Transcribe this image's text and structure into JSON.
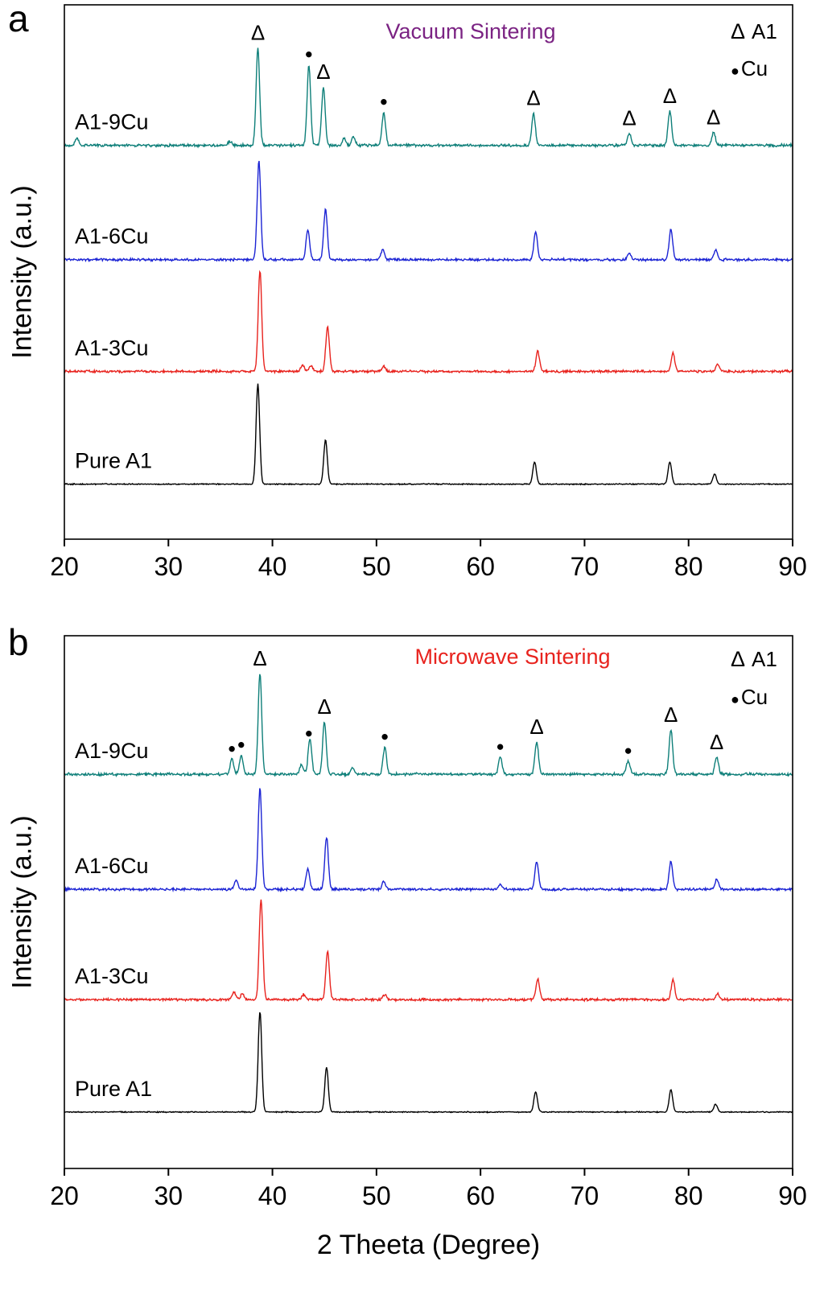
{
  "figure": {
    "xlabel": "2 Theeta (Degree)",
    "background": "#ffffff"
  },
  "chart_data": [
    {
      "type": "line",
      "panel_letter": "a",
      "title": "Vacuum Sintering",
      "title_color": "#7b2383",
      "xlabel": "2 Theeta (Degree)",
      "ylabel": "Intensity (a.u.)",
      "xlim": [
        20,
        90
      ],
      "x_ticks": [
        20,
        30,
        40,
        50,
        60,
        70,
        80,
        90
      ],
      "legend": [
        {
          "symbol": "Δ",
          "label": "A1"
        },
        {
          "symbol": "●",
          "label": "Cu"
        }
      ],
      "peak_markers": [
        {
          "symbol": "Δ",
          "x": 38.6
        },
        {
          "symbol": "●",
          "x": 43.5
        },
        {
          "symbol": "Δ",
          "x": 44.9
        },
        {
          "symbol": "●",
          "x": 50.7
        },
        {
          "symbol": "Δ",
          "x": 65.1
        },
        {
          "symbol": "Δ",
          "x": 74.3
        },
        {
          "symbol": "Δ",
          "x": 78.2
        },
        {
          "symbol": "Δ",
          "x": 82.4
        }
      ],
      "series": [
        {
          "name": "A1-9Cu",
          "color": "#0e7f79",
          "noise": 2.0,
          "peaks": [
            {
              "x": 21.2,
              "h": 0.07
            },
            {
              "x": 35.9,
              "h": 0.04
            },
            {
              "x": 38.6,
              "h": 0.97
            },
            {
              "x": 43.5,
              "h": 0.8
            },
            {
              "x": 44.9,
              "h": 0.58
            },
            {
              "x": 46.9,
              "h": 0.07
            },
            {
              "x": 47.8,
              "h": 0.09
            },
            {
              "x": 50.7,
              "h": 0.33
            },
            {
              "x": 65.1,
              "h": 0.32
            },
            {
              "x": 74.3,
              "h": 0.12
            },
            {
              "x": 78.2,
              "h": 0.34
            },
            {
              "x": 82.4,
              "h": 0.13
            }
          ]
        },
        {
          "name": "A1-6Cu",
          "color": "#1c24d4",
          "noise": 1.8,
          "peaks": [
            {
              "x": 38.7,
              "h": 0.98
            },
            {
              "x": 43.4,
              "h": 0.3
            },
            {
              "x": 45.1,
              "h": 0.5
            },
            {
              "x": 50.6,
              "h": 0.1
            },
            {
              "x": 65.3,
              "h": 0.28
            },
            {
              "x": 74.3,
              "h": 0.06
            },
            {
              "x": 78.3,
              "h": 0.3
            },
            {
              "x": 82.6,
              "h": 0.1
            }
          ]
        },
        {
          "name": "A1-3Cu",
          "color": "#e8231e",
          "noise": 1.8,
          "peaks": [
            {
              "x": 38.8,
              "h": 1.0
            },
            {
              "x": 42.9,
              "h": 0.06
            },
            {
              "x": 43.7,
              "h": 0.06
            },
            {
              "x": 45.3,
              "h": 0.44
            },
            {
              "x": 50.7,
              "h": 0.05
            },
            {
              "x": 65.5,
              "h": 0.2
            },
            {
              "x": 78.5,
              "h": 0.18
            },
            {
              "x": 82.8,
              "h": 0.07
            }
          ]
        },
        {
          "name": "Pure A1",
          "color": "#000000",
          "noise": 0.8,
          "peaks": [
            {
              "x": 38.6,
              "h": 1.0
            },
            {
              "x": 45.1,
              "h": 0.44
            },
            {
              "x": 65.2,
              "h": 0.22
            },
            {
              "x": 78.2,
              "h": 0.22
            },
            {
              "x": 82.5,
              "h": 0.1
            }
          ]
        }
      ]
    },
    {
      "type": "line",
      "panel_letter": "b",
      "title": "Microwave Sintering",
      "title_color": "#e8231e",
      "xlabel": "2 Theeta (Degree)",
      "ylabel": "Intensity (a.u.)",
      "xlim": [
        20,
        90
      ],
      "x_ticks": [
        20,
        30,
        40,
        50,
        60,
        70,
        80,
        90
      ],
      "legend": [
        {
          "symbol": "Δ",
          "label": "A1"
        },
        {
          "symbol": "●",
          "label": "Cu"
        }
      ],
      "peak_markers": [
        {
          "symbol": "●",
          "x": 36.1
        },
        {
          "symbol": "●",
          "x": 37.0
        },
        {
          "symbol": "Δ",
          "x": 38.8
        },
        {
          "symbol": "●",
          "x": 43.5
        },
        {
          "symbol": "Δ",
          "x": 45.0
        },
        {
          "symbol": "●",
          "x": 50.8
        },
        {
          "symbol": "●",
          "x": 61.9
        },
        {
          "symbol": "Δ",
          "x": 65.4
        },
        {
          "symbol": "●",
          "x": 74.2
        },
        {
          "symbol": "Δ",
          "x": 78.3
        },
        {
          "symbol": "Δ",
          "x": 82.7
        }
      ],
      "series": [
        {
          "name": "A1-9Cu",
          "color": "#0e7f79",
          "noise": 2.0,
          "peaks": [
            {
              "x": 36.1,
              "h": 0.15
            },
            {
              "x": 37.0,
              "h": 0.19
            },
            {
              "x": 38.8,
              "h": 1.0
            },
            {
              "x": 42.8,
              "h": 0.1
            },
            {
              "x": 43.6,
              "h": 0.36
            },
            {
              "x": 45.0,
              "h": 0.52
            },
            {
              "x": 47.7,
              "h": 0.06
            },
            {
              "x": 50.8,
              "h": 0.27
            },
            {
              "x": 61.9,
              "h": 0.17
            },
            {
              "x": 65.4,
              "h": 0.32
            },
            {
              "x": 74.2,
              "h": 0.13
            },
            {
              "x": 78.3,
              "h": 0.44
            },
            {
              "x": 82.7,
              "h": 0.17
            }
          ]
        },
        {
          "name": "A1-6Cu",
          "color": "#1c24d4",
          "noise": 1.8,
          "peaks": [
            {
              "x": 36.5,
              "h": 0.09
            },
            {
              "x": 38.8,
              "h": 1.0
            },
            {
              "x": 43.4,
              "h": 0.2
            },
            {
              "x": 45.2,
              "h": 0.52
            },
            {
              "x": 50.7,
              "h": 0.08
            },
            {
              "x": 61.9,
              "h": 0.05
            },
            {
              "x": 65.4,
              "h": 0.28
            },
            {
              "x": 78.3,
              "h": 0.28
            },
            {
              "x": 82.7,
              "h": 0.1
            }
          ]
        },
        {
          "name": "A1-3Cu",
          "color": "#e8231e",
          "noise": 1.8,
          "peaks": [
            {
              "x": 36.3,
              "h": 0.08
            },
            {
              "x": 37.1,
              "h": 0.06
            },
            {
              "x": 38.9,
              "h": 1.0
            },
            {
              "x": 43.0,
              "h": 0.05
            },
            {
              "x": 45.3,
              "h": 0.48
            },
            {
              "x": 50.8,
              "h": 0.05
            },
            {
              "x": 65.5,
              "h": 0.2
            },
            {
              "x": 78.5,
              "h": 0.2
            },
            {
              "x": 82.8,
              "h": 0.06
            }
          ]
        },
        {
          "name": "Pure A1",
          "color": "#000000",
          "noise": 0.8,
          "peaks": [
            {
              "x": 38.8,
              "h": 1.0
            },
            {
              "x": 45.2,
              "h": 0.44
            },
            {
              "x": 65.3,
              "h": 0.2
            },
            {
              "x": 78.3,
              "h": 0.22
            },
            {
              "x": 82.6,
              "h": 0.08
            }
          ]
        }
      ]
    }
  ]
}
